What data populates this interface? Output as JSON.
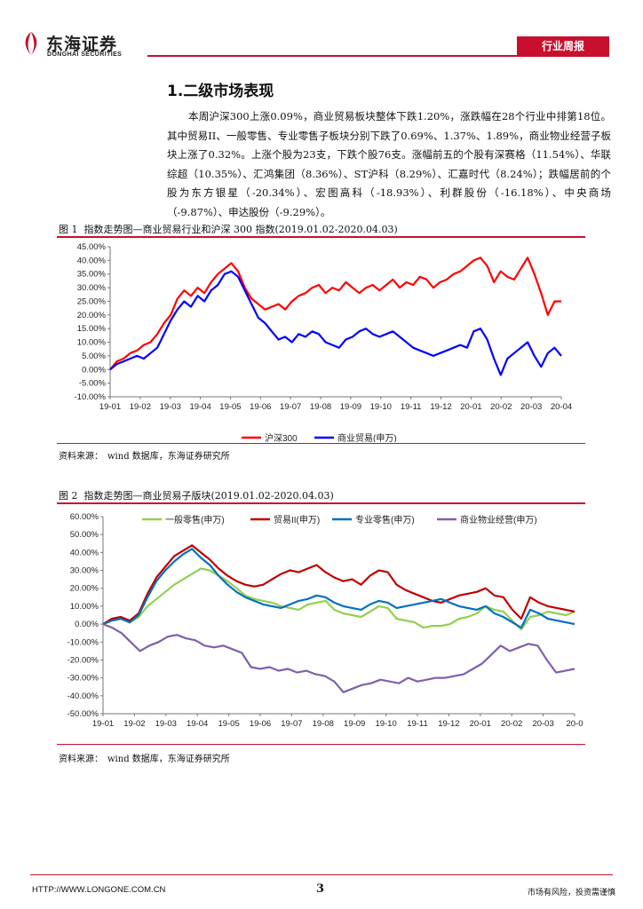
{
  "header": {
    "logo_cn": "东海证券",
    "logo_en": "DONGHAI SECURITIES",
    "report_type": "行业周报"
  },
  "section": {
    "title": "1.二级市场表现",
    "paragraph": "本周沪深300上涨0.09%，商业贸易板块整体下跌1.20%，涨跌幅在28个行业中排第18位。其中贸易II、一般零售、专业零售子板块分别下跌了0.69%、1.37%、1.89%，商业物业经营子板块上涨了0.32%。上涨个股为23支，下跌个股76支。涨幅前五的个股有深赛格（11.54%）、华联综超（10.35%）、汇鸿集团（8.36%）、ST沪科（8.29%）、汇嘉时代（8.24%）；跌幅居前的个股为东方银星（-20.34%）、宏图高科（-18.93%）、利群股份（-16.18%）、中央商场（-9.87%）、申达股份（-9.29%）。"
  },
  "figure1": {
    "label": "图 1",
    "title": "指数走势图—商业贸易行业和沪深 300 指数(2019.01.02-2020.04.03)",
    "source": "资料来源：　wind 数据库，东海证券研究所"
  },
  "figure2": {
    "label": "图 2",
    "title": "指数走势图—商业贸易子版块(2019.01.02-2020.04.03)",
    "source": "资料来源：　wind 数据库，东海证券研究所"
  },
  "footer": {
    "url": "HTTP://WWW.LONGONE.COM.CN",
    "page": "3",
    "disclaimer": "市场有风险，投资需谨慎"
  },
  "chart_data": [
    {
      "type": "line",
      "title": "指数走势图—商业贸易行业和沪深 300 指数(2019.01.02-2020.04.03)",
      "x_ticks": [
        "19-01",
        "19-02",
        "19-03",
        "19-04",
        "19-05",
        "19-06",
        "19-07",
        "19-08",
        "19-09",
        "19-10",
        "19-11",
        "19-12",
        "20-01",
        "20-02",
        "20-03",
        "20-04"
      ],
      "y_ticks": [
        "-10.00%",
        "-5.00%",
        "0.00%",
        "5.00%",
        "10.00%",
        "15.00%",
        "20.00%",
        "25.00%",
        "30.00%",
        "35.00%",
        "40.00%",
        "45.00%"
      ],
      "ylim": [
        -10,
        45
      ],
      "legend_position": "bottom",
      "series": [
        {
          "name": "沪深300",
          "color": "#ff0000",
          "values": [
            0,
            3,
            4,
            6,
            7,
            9,
            10,
            13,
            17,
            20,
            26,
            29,
            27,
            30,
            28,
            32,
            35,
            37,
            39,
            36,
            30,
            26,
            24,
            22,
            23,
            24,
            22,
            25,
            27,
            28,
            30,
            31,
            28,
            30,
            29,
            32,
            30,
            28,
            30,
            31,
            29,
            31,
            33,
            30,
            32,
            31,
            34,
            33,
            30,
            32,
            33,
            35,
            36,
            38,
            40,
            41,
            38,
            32,
            36,
            34,
            33,
            37,
            41,
            35,
            28,
            20,
            25,
            25
          ]
        },
        {
          "name": "商业贸易(申万)",
          "color": "#0000ff",
          "values": [
            0,
            2,
            3,
            4,
            5,
            4,
            6,
            8,
            13,
            18,
            22,
            25,
            23,
            27,
            25,
            29,
            31,
            35,
            36,
            34,
            29,
            24,
            19,
            17,
            14,
            11,
            12,
            10,
            13,
            12,
            14,
            13,
            10,
            9,
            8,
            11,
            12,
            14,
            15,
            13,
            12,
            13,
            14,
            12,
            10,
            8,
            7,
            6,
            5,
            6,
            7,
            8,
            9,
            8,
            14,
            15,
            11,
            4,
            -2,
            4,
            6,
            8,
            10,
            5,
            1,
            6,
            8,
            5
          ]
        }
      ]
    },
    {
      "type": "line",
      "title": "指数走势图—商业贸易子版块(2019.01.02-2020.04.03)",
      "x_ticks": [
        "19-01",
        "19-02",
        "19-03",
        "19-04",
        "19-05",
        "19-06",
        "19-07",
        "19-08",
        "19-09",
        "19-10",
        "19-11",
        "19-12",
        "20-01",
        "20-02",
        "20-03",
        "20-0"
      ],
      "y_ticks": [
        "-50.00%",
        "-40.00%",
        "-30.00%",
        "-20.00%",
        "-10.00%",
        "0.00%",
        "10.00%",
        "20.00%",
        "30.00%",
        "40.00%",
        "50.00%",
        "60.00%"
      ],
      "ylim": [
        -50,
        60
      ],
      "legend_position": "top",
      "series": [
        {
          "name": "一般零售(申万)",
          "color": "#92d050",
          "values": [
            0,
            2,
            3,
            1,
            4,
            10,
            14,
            18,
            22,
            25,
            28,
            31,
            30,
            27,
            24,
            20,
            16,
            14,
            13,
            12,
            10,
            9,
            8,
            11,
            12,
            13,
            8,
            6,
            5,
            4,
            7,
            10,
            9,
            3,
            2,
            1,
            -2,
            -1,
            -1,
            0,
            3,
            4,
            6,
            10,
            8,
            7,
            2,
            -3,
            4,
            5,
            7,
            6,
            5,
            7
          ]
        },
        {
          "name": "贸易II(申万)",
          "color": "#c00000",
          "values": [
            0,
            3,
            4,
            2,
            6,
            17,
            26,
            32,
            38,
            41,
            44,
            40,
            36,
            31,
            27,
            24,
            22,
            21,
            22,
            25,
            28,
            30,
            29,
            31,
            33,
            29,
            26,
            24,
            25,
            22,
            27,
            30,
            29,
            22,
            19,
            17,
            15,
            13,
            12,
            14,
            16,
            17,
            18,
            20,
            16,
            15,
            8,
            3,
            15,
            12,
            10,
            9,
            8,
            7
          ]
        },
        {
          "name": "专业零售(申万)",
          "color": "#0070c0",
          "values": [
            0,
            2,
            3,
            1,
            5,
            15,
            24,
            30,
            35,
            39,
            42,
            37,
            33,
            27,
            22,
            18,
            15,
            13,
            11,
            10,
            9,
            11,
            13,
            14,
            16,
            15,
            12,
            10,
            9,
            8,
            11,
            13,
            12,
            9,
            10,
            11,
            12,
            13,
            14,
            12,
            10,
            9,
            8,
            10,
            6,
            4,
            1,
            -2,
            8,
            6,
            3,
            2,
            1,
            0
          ]
        },
        {
          "name": "商业物业经营(申万)",
          "color": "#7f5fad",
          "values": [
            0,
            -2,
            -5,
            -10,
            -15,
            -12,
            -10,
            -7,
            -6,
            -8,
            -9,
            -12,
            -13,
            -12,
            -14,
            -16,
            -24,
            -25,
            -24,
            -26,
            -25,
            -27,
            -26,
            -28,
            -29,
            -32,
            -38,
            -36,
            -34,
            -33,
            -31,
            -32,
            -33,
            -30,
            -32,
            -31,
            -30,
            -30,
            -29,
            -28,
            -25,
            -22,
            -17,
            -12,
            -15,
            -13,
            -11,
            -12,
            -20,
            -27,
            -26,
            -25
          ]
        }
      ]
    }
  ]
}
